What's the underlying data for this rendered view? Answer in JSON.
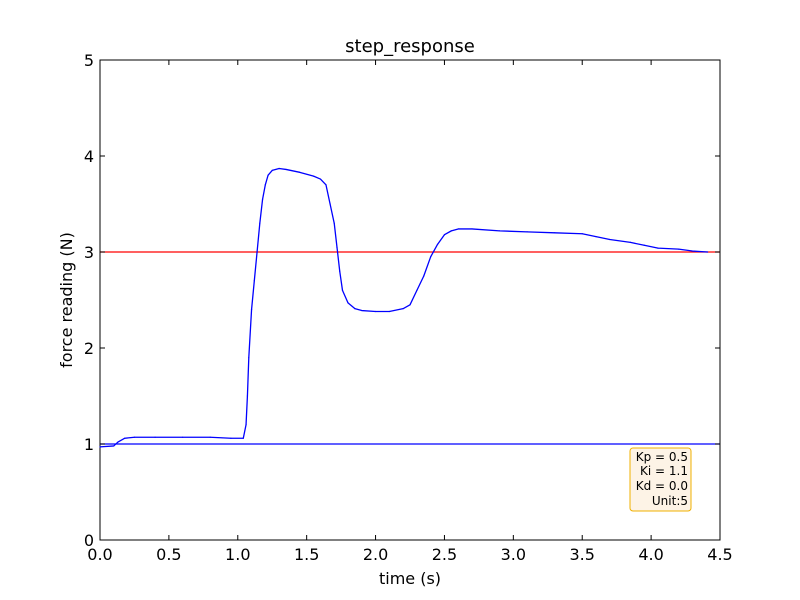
{
  "chart_data": {
    "type": "line",
    "title": "step_response",
    "xlabel": "time (s)",
    "ylabel": "force reading (N)",
    "xlim": [
      0.0,
      4.5
    ],
    "ylim": [
      0,
      5
    ],
    "xticks": [
      0.0,
      0.5,
      1.0,
      1.5,
      2.0,
      2.5,
      3.0,
      3.5,
      4.0,
      4.5
    ],
    "xtick_labels": [
      "0.0",
      "0.5",
      "1.0",
      "1.5",
      "2.0",
      "2.5",
      "3.0",
      "3.5",
      "4.0",
      "4.5"
    ],
    "yticks": [
      0,
      1,
      2,
      3,
      4,
      5
    ],
    "ytick_labels": [
      "0",
      "1",
      "2",
      "3",
      "4",
      "5"
    ],
    "grid": false,
    "series": [
      {
        "color": "#0000ff",
        "points": [
          [
            0.0,
            0.97
          ],
          [
            0.1,
            0.98
          ],
          [
            0.13,
            1.02
          ],
          [
            0.18,
            1.06
          ],
          [
            0.25,
            1.07
          ],
          [
            0.4,
            1.07
          ],
          [
            0.6,
            1.07
          ],
          [
            0.8,
            1.07
          ],
          [
            0.95,
            1.06
          ],
          [
            1.04,
            1.06
          ],
          [
            1.06,
            1.2
          ],
          [
            1.07,
            1.5
          ],
          [
            1.08,
            1.9
          ],
          [
            1.1,
            2.4
          ],
          [
            1.12,
            2.7
          ],
          [
            1.14,
            3.0
          ],
          [
            1.16,
            3.3
          ],
          [
            1.18,
            3.55
          ],
          [
            1.2,
            3.7
          ],
          [
            1.22,
            3.8
          ],
          [
            1.25,
            3.85
          ],
          [
            1.3,
            3.87
          ],
          [
            1.35,
            3.86
          ],
          [
            1.45,
            3.83
          ],
          [
            1.55,
            3.79
          ],
          [
            1.6,
            3.76
          ],
          [
            1.64,
            3.7
          ],
          [
            1.67,
            3.5
          ],
          [
            1.7,
            3.3
          ],
          [
            1.72,
            3.05
          ],
          [
            1.74,
            2.8
          ],
          [
            1.76,
            2.6
          ],
          [
            1.8,
            2.47
          ],
          [
            1.85,
            2.41
          ],
          [
            1.9,
            2.39
          ],
          [
            2.0,
            2.38
          ],
          [
            2.1,
            2.38
          ],
          [
            2.2,
            2.41
          ],
          [
            2.25,
            2.45
          ],
          [
            2.3,
            2.6
          ],
          [
            2.35,
            2.75
          ],
          [
            2.4,
            2.95
          ],
          [
            2.45,
            3.08
          ],
          [
            2.5,
            3.18
          ],
          [
            2.55,
            3.22
          ],
          [
            2.6,
            3.24
          ],
          [
            2.7,
            3.24
          ],
          [
            2.9,
            3.22
          ],
          [
            3.1,
            3.21
          ],
          [
            3.3,
            3.2
          ],
          [
            3.5,
            3.19
          ],
          [
            3.6,
            3.16
          ],
          [
            3.7,
            3.13
          ],
          [
            3.85,
            3.1
          ],
          [
            3.95,
            3.07
          ],
          [
            4.05,
            3.04
          ],
          [
            4.2,
            3.03
          ],
          [
            4.3,
            3.01
          ],
          [
            4.41,
            3.0
          ]
        ]
      }
    ],
    "hlines": [
      {
        "y": 3.0,
        "color": "#ff0000"
      },
      {
        "y": 1.0,
        "color": "#0000ff"
      }
    ],
    "annotation": {
      "lines": [
        "Kp = 0.5",
        "Ki = 1.1",
        "Kd = 0.0",
        "Unit:5"
      ],
      "placement": "bottom-right",
      "box_fill": "#fdf3e6",
      "box_stroke": "#f0b000"
    }
  }
}
